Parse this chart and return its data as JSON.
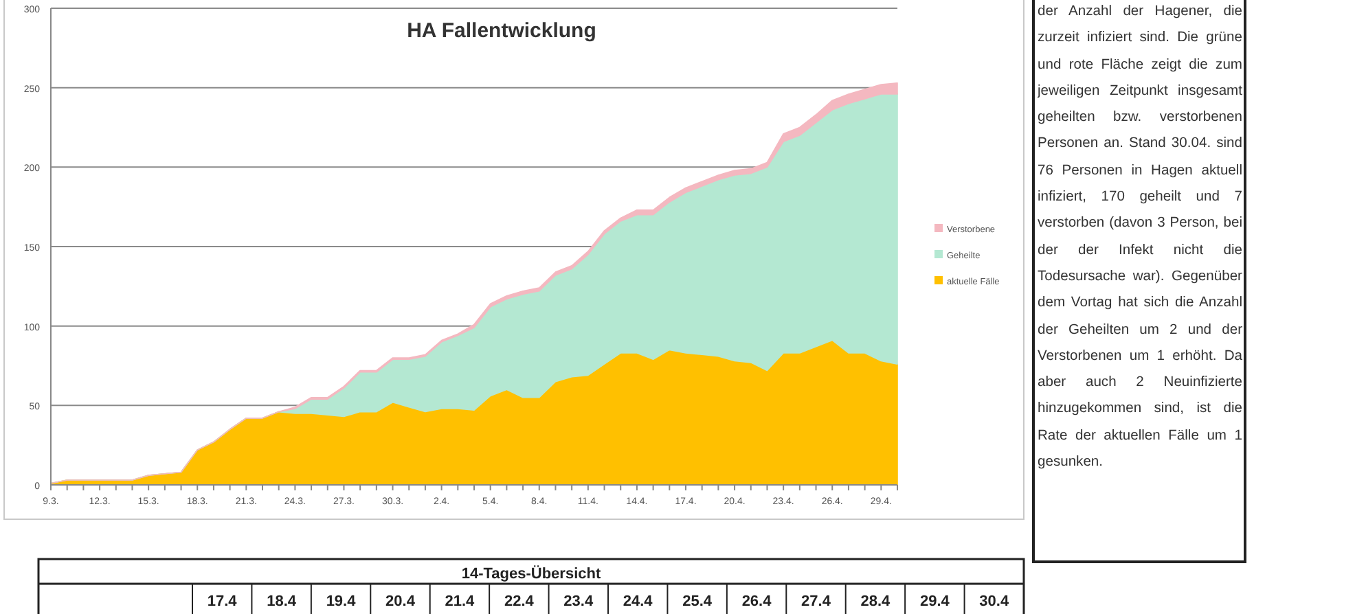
{
  "chart_data": {
    "type": "area",
    "stacked": true,
    "title": "HA Fallentwicklung",
    "categories": [
      "9.3.",
      null,
      null,
      "12.3.",
      null,
      null,
      "15.3.",
      null,
      null,
      "18.3.",
      null,
      null,
      "21.3.",
      null,
      null,
      "24.3.",
      null,
      null,
      "27.3.",
      null,
      null,
      "30.3.",
      null,
      null,
      "2.4.",
      null,
      null,
      "5.4.",
      null,
      null,
      "8.4.",
      null,
      null,
      "11.4.",
      null,
      null,
      "14.4.",
      null,
      null,
      "17.4.",
      null,
      null,
      "20.4.",
      null,
      null,
      "23.4.",
      null,
      null,
      "26.4.",
      null,
      null,
      "29.4.",
      null
    ],
    "series": [
      {
        "name": "aktuelle Fälle",
        "color": "#ffc000",
        "values": [
          1,
          3,
          3,
          3,
          3,
          3,
          6,
          7,
          8,
          22,
          27,
          35,
          42,
          42,
          46,
          45,
          45,
          44,
          43,
          46,
          46,
          52,
          49,
          46,
          48,
          48,
          47,
          56,
          60,
          55,
          55,
          65,
          68,
          69,
          76,
          83,
          83,
          79,
          85,
          83,
          82,
          81,
          78,
          77,
          72,
          83,
          83,
          87,
          91,
          83,
          83,
          78,
          76
        ]
      },
      {
        "name": "Geheilte",
        "color": "#b4e8d2",
        "values": [
          0,
          0,
          0,
          0,
          0,
          0,
          0,
          0,
          0,
          0,
          0,
          0,
          0,
          0,
          0,
          3,
          9,
          10,
          18,
          25,
          25,
          27,
          30,
          35,
          42,
          46,
          52,
          56,
          57,
          65,
          67,
          67,
          68,
          76,
          82,
          83,
          87,
          91,
          93,
          101,
          106,
          111,
          117,
          119,
          128,
          133,
          137,
          141,
          145,
          157,
          160,
          168,
          170
        ]
      },
      {
        "name": "Verstorbene",
        "color": "#f4b8c0",
        "values": [
          0,
          0,
          0,
          0,
          0,
          0,
          0,
          0,
          0,
          0,
          0,
          0,
          0,
          0,
          0,
          1,
          1,
          1,
          1,
          1,
          1,
          1,
          1,
          1,
          1,
          1,
          2,
          2,
          2,
          2,
          2,
          2,
          2,
          2,
          2,
          2,
          3,
          3,
          3,
          3,
          3,
          3,
          3,
          3,
          3,
          5,
          5,
          5,
          6,
          6,
          6,
          6,
          7
        ]
      }
    ],
    "ylim": [
      0,
      300
    ],
    "yticks": [
      0,
      50,
      100,
      150,
      200,
      250,
      300
    ],
    "grid": "y",
    "legend": "right",
    "annotations": [
      "der Anzahl der Hagener, die zurzeit infiziert sind. Die grüne und rote Fläche zeigt die zum jeweiligen Zeitpunkt insgesamt geheilten bzw. verstorbenen Personen an. Stand 30.04. sind 76 Personen in Hagen aktuell infiziert, 170 geheilt und 7 verstorben (davon 3 Person, bei der der Infekt nicht die Todesursache war). Gegenüber dem Vortag hat sich die Anzahl der Geheilten um 2 und der Verstorbenen um 1 erhöht. Da aber auch 2 Neuinfizierte hinzugekommen sind, ist die Rate der aktuellen Fälle um 1 gesunken.",
      "14-Tages-Übersicht",
      "17.4",
      "18.4",
      "19.4",
      "20.4",
      "21.4",
      "22.4",
      "23.4",
      "24.4",
      "25.4",
      "26.4",
      "27.4",
      "28.4",
      "29.4",
      "30.4"
    ]
  }
}
